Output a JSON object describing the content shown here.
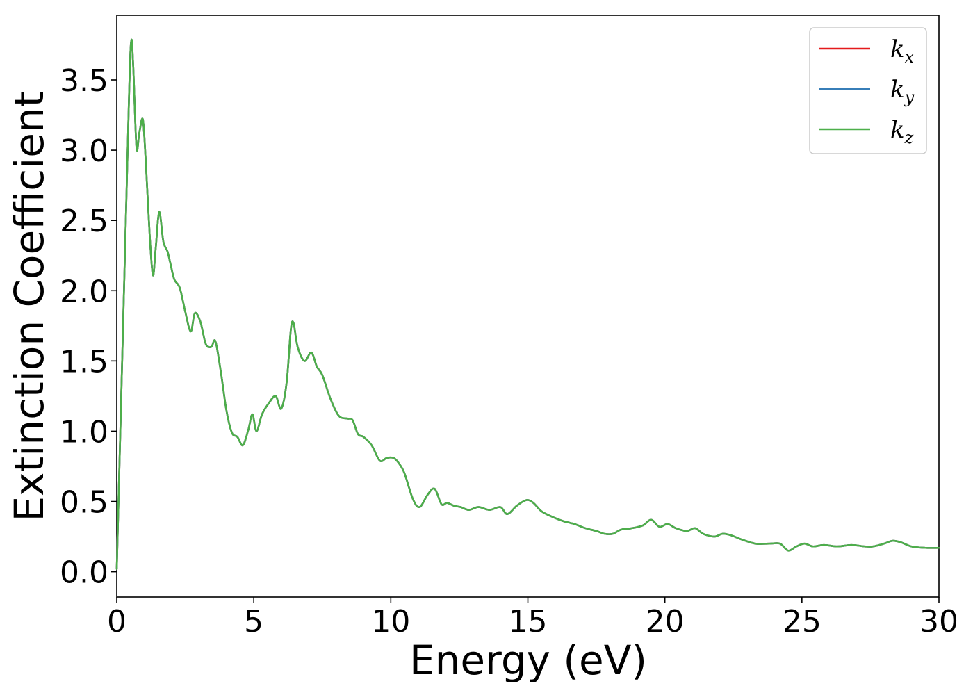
{
  "chart_data": {
    "type": "line",
    "title": "",
    "xlabel": "Energy (eV)",
    "ylabel": "Extinction Coefficient",
    "xlim": [
      0,
      30
    ],
    "ylim": [
      -0.18,
      3.96
    ],
    "xticks": [
      {
        "value": 0,
        "label": "0"
      },
      {
        "value": 5,
        "label": "5"
      },
      {
        "value": 10,
        "label": "10"
      },
      {
        "value": 15,
        "label": "15"
      },
      {
        "value": 20,
        "label": "20"
      },
      {
        "value": 25,
        "label": "25"
      },
      {
        "value": 30,
        "label": "30"
      }
    ],
    "yticks": [
      {
        "value": 0.0,
        "label": "0.0"
      },
      {
        "value": 0.5,
        "label": "0.5"
      },
      {
        "value": 1.0,
        "label": "1.0"
      },
      {
        "value": 1.5,
        "label": "1.5"
      },
      {
        "value": 2.0,
        "label": "2.0"
      },
      {
        "value": 2.5,
        "label": "2.5"
      },
      {
        "value": 3.0,
        "label": "3.0"
      },
      {
        "value": 3.5,
        "label": "3.5"
      }
    ],
    "grid": false,
    "legend_position": "top-right",
    "x": [
      0.0,
      0.25,
      0.45,
      0.53,
      0.6,
      0.72,
      0.82,
      0.95,
      1.05,
      1.2,
      1.32,
      1.42,
      1.55,
      1.7,
      1.85,
      1.95,
      2.1,
      2.3,
      2.5,
      2.7,
      2.85,
      3.05,
      3.25,
      3.45,
      3.6,
      3.8,
      4.0,
      4.2,
      4.4,
      4.6,
      4.8,
      4.95,
      5.1,
      5.3,
      5.55,
      5.8,
      6.0,
      6.2,
      6.35,
      6.45,
      6.6,
      6.85,
      7.1,
      7.3,
      7.5,
      7.8,
      8.1,
      8.4,
      8.6,
      8.8,
      9.0,
      9.3,
      9.6,
      9.85,
      10.1,
      10.3,
      10.5,
      10.8,
      11.05,
      11.35,
      11.6,
      11.85,
      12.05,
      12.3,
      12.55,
      12.85,
      13.2,
      13.6,
      14.0,
      14.25,
      14.6,
      14.95,
      15.2,
      15.5,
      15.9,
      16.3,
      16.7,
      17.1,
      17.5,
      17.8,
      18.1,
      18.4,
      18.8,
      19.2,
      19.5,
      19.8,
      20.1,
      20.4,
      20.8,
      21.1,
      21.4,
      21.8,
      22.1,
      22.4,
      22.8,
      23.3,
      23.8,
      24.2,
      24.5,
      24.8,
      25.1,
      25.4,
      25.8,
      26.3,
      26.8,
      27.3,
      27.6,
      28.0,
      28.3,
      28.6,
      29.0,
      29.5,
      30.0
    ],
    "series": [
      {
        "name": "k_x",
        "color": "#e41a1c",
        "values": [
          0.02,
          1.9,
          3.4,
          3.78,
          3.6,
          3.02,
          3.12,
          3.22,
          2.95,
          2.4,
          2.11,
          2.3,
          2.56,
          2.35,
          2.28,
          2.2,
          2.08,
          2.02,
          1.85,
          1.71,
          1.84,
          1.78,
          1.62,
          1.6,
          1.64,
          1.42,
          1.15,
          0.99,
          0.96,
          0.9,
          1.01,
          1.12,
          1.0,
          1.12,
          1.2,
          1.25,
          1.16,
          1.35,
          1.72,
          1.77,
          1.6,
          1.5,
          1.56,
          1.46,
          1.4,
          1.23,
          1.11,
          1.09,
          1.08,
          0.98,
          0.96,
          0.9,
          0.79,
          0.81,
          0.81,
          0.77,
          0.7,
          0.52,
          0.46,
          0.55,
          0.59,
          0.48,
          0.49,
          0.47,
          0.46,
          0.44,
          0.46,
          0.44,
          0.46,
          0.41,
          0.47,
          0.51,
          0.49,
          0.43,
          0.39,
          0.36,
          0.34,
          0.31,
          0.29,
          0.27,
          0.27,
          0.3,
          0.31,
          0.33,
          0.37,
          0.32,
          0.34,
          0.31,
          0.29,
          0.31,
          0.27,
          0.25,
          0.27,
          0.26,
          0.23,
          0.2,
          0.2,
          0.2,
          0.15,
          0.18,
          0.2,
          0.18,
          0.19,
          0.18,
          0.19,
          0.18,
          0.18,
          0.2,
          0.22,
          0.21,
          0.18,
          0.17,
          0.17
        ]
      },
      {
        "name": "k_y",
        "color": "#377eb8",
        "values": [
          0.02,
          1.9,
          3.4,
          3.78,
          3.6,
          3.02,
          3.12,
          3.22,
          2.95,
          2.4,
          2.11,
          2.3,
          2.56,
          2.35,
          2.28,
          2.2,
          2.08,
          2.02,
          1.85,
          1.71,
          1.84,
          1.78,
          1.62,
          1.6,
          1.64,
          1.42,
          1.15,
          0.99,
          0.96,
          0.9,
          1.01,
          1.12,
          1.0,
          1.12,
          1.2,
          1.25,
          1.16,
          1.35,
          1.72,
          1.77,
          1.6,
          1.5,
          1.56,
          1.46,
          1.4,
          1.23,
          1.11,
          1.09,
          1.08,
          0.98,
          0.96,
          0.9,
          0.79,
          0.81,
          0.81,
          0.77,
          0.7,
          0.52,
          0.46,
          0.55,
          0.59,
          0.48,
          0.49,
          0.47,
          0.46,
          0.44,
          0.46,
          0.44,
          0.46,
          0.41,
          0.47,
          0.51,
          0.49,
          0.43,
          0.39,
          0.36,
          0.34,
          0.31,
          0.29,
          0.27,
          0.27,
          0.3,
          0.31,
          0.33,
          0.37,
          0.32,
          0.34,
          0.31,
          0.29,
          0.31,
          0.27,
          0.25,
          0.27,
          0.26,
          0.23,
          0.2,
          0.2,
          0.2,
          0.15,
          0.18,
          0.2,
          0.18,
          0.19,
          0.18,
          0.19,
          0.18,
          0.18,
          0.2,
          0.22,
          0.21,
          0.18,
          0.17,
          0.17
        ]
      },
      {
        "name": "k_z",
        "color": "#4daf4a",
        "values": [
          0.02,
          1.9,
          3.4,
          3.78,
          3.6,
          3.02,
          3.12,
          3.22,
          2.95,
          2.4,
          2.11,
          2.3,
          2.56,
          2.35,
          2.28,
          2.2,
          2.08,
          2.02,
          1.85,
          1.71,
          1.84,
          1.78,
          1.62,
          1.6,
          1.64,
          1.42,
          1.15,
          0.99,
          0.96,
          0.9,
          1.01,
          1.12,
          1.0,
          1.12,
          1.2,
          1.25,
          1.16,
          1.35,
          1.72,
          1.77,
          1.6,
          1.5,
          1.56,
          1.46,
          1.4,
          1.23,
          1.11,
          1.09,
          1.08,
          0.98,
          0.96,
          0.9,
          0.79,
          0.81,
          0.81,
          0.77,
          0.7,
          0.52,
          0.46,
          0.55,
          0.59,
          0.48,
          0.49,
          0.47,
          0.46,
          0.44,
          0.46,
          0.44,
          0.46,
          0.41,
          0.47,
          0.51,
          0.49,
          0.43,
          0.39,
          0.36,
          0.34,
          0.31,
          0.29,
          0.27,
          0.27,
          0.3,
          0.31,
          0.33,
          0.37,
          0.32,
          0.34,
          0.31,
          0.29,
          0.31,
          0.27,
          0.25,
          0.27,
          0.26,
          0.23,
          0.2,
          0.2,
          0.2,
          0.15,
          0.18,
          0.2,
          0.18,
          0.19,
          0.18,
          0.19,
          0.18,
          0.18,
          0.2,
          0.22,
          0.21,
          0.18,
          0.17,
          0.17
        ]
      }
    ],
    "legend": [
      {
        "base": "k",
        "sub": "x",
        "color": "#e41a1c"
      },
      {
        "base": "k",
        "sub": "y",
        "color": "#377eb8"
      },
      {
        "base": "k",
        "sub": "z",
        "color": "#4daf4a"
      }
    ]
  }
}
